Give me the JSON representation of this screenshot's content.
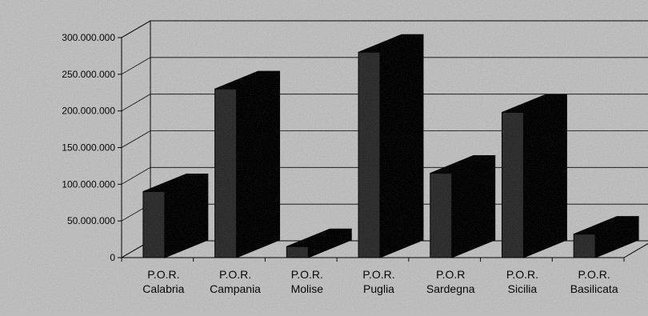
{
  "chart_data": {
    "type": "bar",
    "title": "",
    "xlabel": "",
    "ylabel": "",
    "categories": [
      [
        "P.O.R.",
        "Calabria"
      ],
      [
        "P.O.R.",
        "Campania"
      ],
      [
        "P.O.R.",
        "Molise"
      ],
      [
        "P.O.R.",
        "Puglia"
      ],
      [
        "P.O.R",
        "Sardegna"
      ],
      [
        "P.O.R.",
        "Sicilia"
      ],
      [
        "P.O.R.",
        "Basilicata"
      ]
    ],
    "values": [
      90000000,
      230000000,
      15000000,
      280000000,
      115000000,
      198000000,
      32000000
    ],
    "ylim": [
      0,
      300000000
    ],
    "yticks": [
      0,
      50000000,
      100000000,
      150000000,
      200000000,
      250000000,
      300000000
    ],
    "ytick_labels": [
      "0",
      "50.000.000",
      "100.000.000",
      "150.000.000",
      "200.000.000",
      "250.000.000",
      "300.000.000"
    ],
    "grid": true,
    "legend": "none",
    "style": "3d-column",
    "colors": {
      "background": "#bdbdbd",
      "bar_front": "#2a2a2a",
      "bar_side": "#000000",
      "bar_top": "#000000",
      "axis": "#000000"
    }
  }
}
